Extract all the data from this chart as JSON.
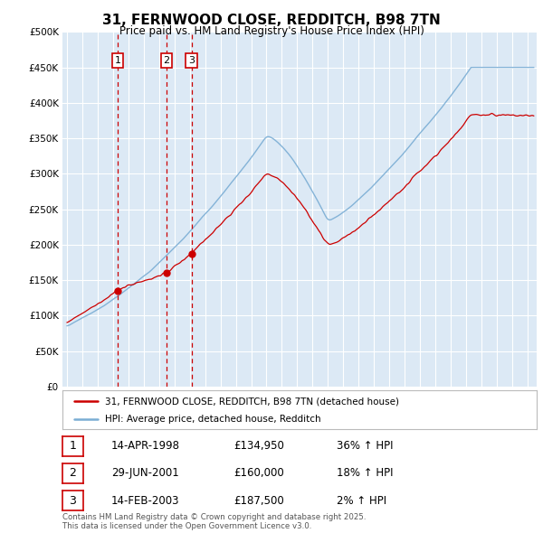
{
  "title": "31, FERNWOOD CLOSE, REDDITCH, B98 7TN",
  "subtitle": "Price paid vs. HM Land Registry's House Price Index (HPI)",
  "bg_color": "#dce9f5",
  "grid_color": "#ffffff",
  "ylim": [
    0,
    500000
  ],
  "yticks": [
    0,
    50000,
    100000,
    150000,
    200000,
    250000,
    300000,
    350000,
    400000,
    450000,
    500000
  ],
  "sale_dates": [
    1998.29,
    2001.49,
    2003.12
  ],
  "sale_prices": [
    134950,
    160000,
    187500
  ],
  "sale_labels": [
    "1",
    "2",
    "3"
  ],
  "sale_date_strs": [
    "14-APR-1998",
    "29-JUN-2001",
    "14-FEB-2003"
  ],
  "sale_price_strs": [
    "£134,950",
    "£160,000",
    "£187,500"
  ],
  "sale_hpi_strs": [
    "36% ↑ HPI",
    "18% ↑ HPI",
    "2% ↑ HPI"
  ],
  "legend_label_red": "31, FERNWOOD CLOSE, REDDITCH, B98 7TN (detached house)",
  "legend_label_blue": "HPI: Average price, detached house, Redditch",
  "footer": "Contains HM Land Registry data © Crown copyright and database right 2025.\nThis data is licensed under the Open Government Licence v3.0.",
  "red_color": "#cc0000",
  "blue_color": "#7aadd4",
  "dashed_color": "#cc0000"
}
